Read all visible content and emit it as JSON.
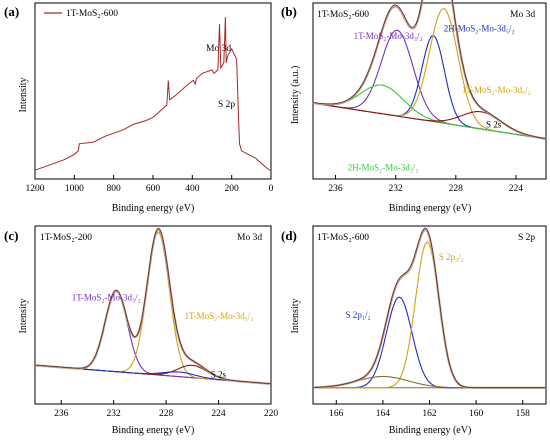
{
  "panels": [
    {
      "id": "a",
      "tag": "(a)",
      "title_left": "",
      "title_right": "",
      "xlabel": "Binding energy (eV)",
      "ylabel": "Intensity",
      "legend": "1T-MoS₂-600",
      "annotations": [
        {
          "text": "Mo 3d",
          "x": 238,
          "y": 0.7
        },
        {
          "text": "S 2p",
          "x": 222,
          "y": 0.36
        }
      ],
      "colors": {
        "survey": "#a52a2a"
      }
    },
    {
      "id": "b",
      "tag": "(b)",
      "title_left": "1T-MoS₂-600",
      "title_right": "Mo 3d",
      "xlabel": "Binding energy (eV)",
      "ylabel": "Intensity (a.u.)",
      "annotations": [
        {
          "text": "1T-MoS₂-Mo-3d₃/₂",
          "x": 234.8,
          "y": 0.8,
          "color": "#7b2fbe"
        },
        {
          "text": "2H-MoS₂-Mo-3d₅/₂",
          "x": 228.8,
          "y": 0.85,
          "color": "#1f2fbf"
        },
        {
          "text": "1T-MoS₂-Mo-3d₅/₂",
          "x": 227.6,
          "y": 0.42,
          "color": "#d4a017"
        },
        {
          "text": "2H-MoS₂-Mo-3d₃/₂",
          "x": 235.2,
          "y": -0.12,
          "color": "#3cc43c"
        },
        {
          "text": "S 2s",
          "x": 225.0,
          "y": 0.18,
          "color": "#000000"
        }
      ]
    },
    {
      "id": "c",
      "tag": "(c)",
      "title_left": "1T-MoS₂-200",
      "title_right": "Mo 3d",
      "xlabel": "Binding energy (eV)",
      "ylabel": "Intensity",
      "annotations": [
        {
          "text": "1T-MoS₂-Mo-3d₃/₂",
          "x": 235.2,
          "y": 0.62,
          "color": "#7b2fbe"
        },
        {
          "text": "1T-MoS₂-Mo-3d₅/₂",
          "x": 226.6,
          "y": 0.5,
          "color": "#d4a017"
        },
        {
          "text": "S 2s",
          "x": 224.6,
          "y": 0.12,
          "color": "#000000"
        }
      ]
    },
    {
      "id": "d",
      "tag": "(d)",
      "title_left": "1T-MoS₂-600",
      "title_right": "S 2p",
      "xlabel": "Binding energy (eV)",
      "ylabel": "Intensity",
      "annotations": [
        {
          "text": "S 2p₃/₂",
          "x": 161.6,
          "y": 0.84,
          "color": "#d4a017"
        },
        {
          "text": "S 2p₁/₂",
          "x": 165.6,
          "y": 0.48,
          "color": "#1f2fbf"
        }
      ]
    }
  ],
  "chart_data": [
    {
      "type": "line",
      "panel": "a",
      "x_reversed": true,
      "xlim": [
        1200,
        0
      ],
      "xticks": [
        1200,
        1000,
        800,
        600,
        400,
        200,
        0
      ],
      "series": [
        {
          "name": "1T-MoS₂-600",
          "color": "#a52a2a",
          "x": [
            1200,
            1150,
            1100,
            1050,
            1000,
            980,
            975,
            900,
            850,
            800,
            750,
            700,
            640,
            600,
            560,
            530,
            522,
            515,
            480,
            450,
            420,
            395,
            385,
            380,
            350,
            300,
            290,
            270,
            262,
            255,
            240,
            232,
            228,
            220,
            200,
            175,
            165,
            160,
            150,
            100,
            80,
            60,
            40,
            20,
            5
          ],
          "y": [
            0.05,
            0.07,
            0.09,
            0.11,
            0.14,
            0.16,
            0.2,
            0.21,
            0.24,
            0.26,
            0.28,
            0.31,
            0.33,
            0.35,
            0.39,
            0.42,
            0.56,
            0.45,
            0.48,
            0.51,
            0.54,
            0.56,
            0.54,
            0.57,
            0.6,
            0.62,
            0.6,
            0.62,
            0.88,
            0.63,
            0.66,
            0.92,
            0.66,
            0.7,
            0.74,
            0.68,
            0.34,
            0.2,
            0.16,
            0.13,
            0.12,
            0.1,
            0.08,
            0.06,
            0.05
          ]
        }
      ]
    },
    {
      "type": "line",
      "panel": "b",
      "x_reversed": true,
      "xlim": [
        237.5,
        222
      ],
      "xticks": [
        236,
        232,
        228,
        224
      ],
      "background": {
        "a": 0.1,
        "b": 0.025
      },
      "peaks": [
        {
          "name": "1T-MoS₂-Mo-3d₃/₂",
          "center": 231.9,
          "height": 0.6,
          "width": 1.05,
          "color": "#7b2fbe"
        },
        {
          "name": "2H-MoS₂-Mo-3d₅/₂",
          "center": 229.5,
          "height": 0.6,
          "width": 0.75,
          "color": "#1f2fbf"
        },
        {
          "name": "1T-MoS₂-Mo-3d₅/₂",
          "center": 228.8,
          "height": 0.8,
          "width": 0.95,
          "color": "#d4a017"
        },
        {
          "name": "2H-MoS₂-Mo-3d₃/₂",
          "center": 232.9,
          "height": 0.2,
          "width": 1.4,
          "color": "#3cc43c"
        },
        {
          "name": "S 2s",
          "center": 226.3,
          "height": 0.12,
          "width": 1.3,
          "color": "#8b1a1a"
        }
      ],
      "envelope_color": "#c0a090",
      "ylim": [
        -0.18,
        1.05
      ]
    },
    {
      "type": "line",
      "panel": "c",
      "x_reversed": true,
      "xlim": [
        238,
        220
      ],
      "xticks": [
        236,
        232,
        228,
        224,
        220
      ],
      "background": {
        "a": 0.08,
        "b": 0.012
      },
      "peaks": [
        {
          "name": "1T-MoS₂-Mo-3d₃/₂",
          "center": 231.8,
          "height": 0.52,
          "width": 0.85,
          "color": "#7b2fbe"
        },
        {
          "name": "1T-MoS₂-Mo-3d₅/₂",
          "center": 228.6,
          "height": 0.92,
          "width": 0.85,
          "color": "#d4a017"
        },
        {
          "name": "S 2s",
          "center": 226.0,
          "height": 0.08,
          "width": 1.1,
          "color": "#8b1a1a"
        },
        {
          "name": "minor",
          "center": 227.0,
          "height": 0.03,
          "width": 1.2,
          "color": "#1f2fbf"
        }
      ],
      "envelope_color": "#c0a090",
      "ylim": [
        -0.05,
        1.1
      ]
    },
    {
      "type": "line",
      "panel": "d",
      "x_reversed": true,
      "xlim": [
        167,
        157
      ],
      "xticks": [
        166,
        164,
        162,
        160,
        158
      ],
      "background": {
        "a": 0.05,
        "b": 0.0
      },
      "peaks": [
        {
          "name": "S 2p₁/₂",
          "center": 163.3,
          "height": 0.56,
          "width": 0.55,
          "color": "#1f2fbf"
        },
        {
          "name": "S 2p₃/₂",
          "center": 162.1,
          "height": 0.9,
          "width": 0.5,
          "color": "#d4a017"
        },
        {
          "name": "broad",
          "center": 164.0,
          "height": 0.07,
          "width": 1.1,
          "color": "#8b6d2a"
        }
      ],
      "envelope_color": "#c0a090",
      "ylim": [
        -0.05,
        1.05
      ]
    }
  ]
}
